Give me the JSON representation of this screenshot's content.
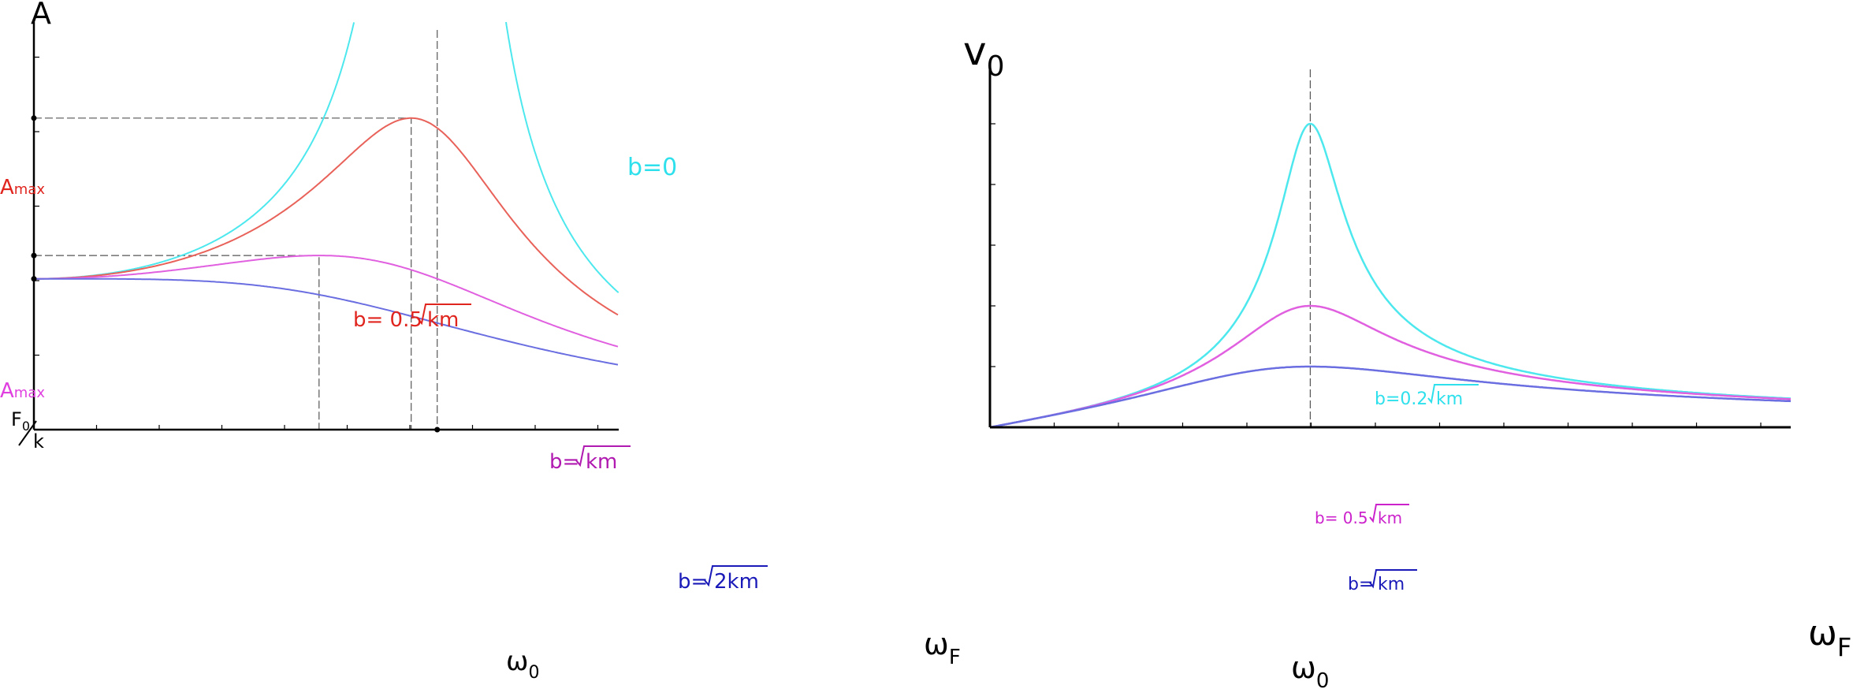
{
  "colors": {
    "axis": "#000000",
    "guide": "#555555",
    "cyan": "#4de8ee",
    "red": "#e8625a",
    "magenta": "#e060e0",
    "blue": "#6a6ee0",
    "label_cyan": "#2ee0ec",
    "label_red": "#e0251f",
    "label_magenta": "#cc22cc",
    "label_darkmag": "#b01ab0",
    "label_blue": "#1a1ab8"
  },
  "chart_data": [
    {
      "type": "line",
      "ylabel": "A",
      "xlabel": "ω",
      "xlabel_sub": "F",
      "xticks": [
        {
          "main": "ω",
          "sub": "0"
        }
      ],
      "yticks": [
        {
          "main": "A",
          "sub": "max",
          "color": "#e0251f"
        },
        {
          "main": "A",
          "sub": "max",
          "color": "#e040e0"
        },
        {
          "num": "F",
          "num_sub": "0",
          "den": "k"
        }
      ],
      "annotations": [
        {
          "text": "b=0",
          "color": "#2ee0ec"
        },
        {
          "text": "b= 0.5",
          "radicand": "km",
          "color": "#e0251f"
        },
        {
          "text": "b=",
          "radicand": "km",
          "color": "#b01ab0"
        },
        {
          "text": "b=",
          "radicand": "2km",
          "color": "#1a1ab8"
        }
      ],
      "parameters": {
        "omega0": 1.0,
        "static_amplitude": 1.0
      },
      "xlim": [
        0,
        1.45
      ],
      "ylim": [
        0,
        2.65
      ],
      "series": [
        {
          "zeta": 0,
          "color": "#4de8ee",
          "label_index": 0
        },
        {
          "zeta": 0.25,
          "color": "#e8625a",
          "label_index": 1
        },
        {
          "zeta": 0.5,
          "color": "#e060e0",
          "label_index": 2
        },
        {
          "zeta": 0.7071,
          "color": "#6a6ee0",
          "label_index": 3
        }
      ]
    },
    {
      "type": "line",
      "ylabel": "v",
      "ylabel_sub": "0",
      "xlabel": "ω",
      "xlabel_sub": "F",
      "xticks": [
        {
          "main": "ω",
          "sub": "0"
        }
      ],
      "annotations": [
        {
          "text": "b=0.2",
          "radicand": "km",
          "color": "#2ee0ec"
        },
        {
          "text": "b= 0.5",
          "radicand": "km",
          "color": "#cc22cc"
        },
        {
          "text": "b=",
          "radicand": "km",
          "color": "#1a1ab8"
        }
      ],
      "parameters": {
        "omega0": 1.0
      },
      "xlim": [
        0,
        2.5
      ],
      "ylim": [
        0,
        6.0
      ],
      "series": [
        {
          "zeta": 0.1,
          "color": "#4de8ee",
          "label_index": 0
        },
        {
          "zeta": 0.25,
          "color": "#e060e0",
          "label_index": 1
        },
        {
          "zeta": 0.5,
          "color": "#6a6ee0",
          "label_index": 2
        }
      ]
    }
  ]
}
